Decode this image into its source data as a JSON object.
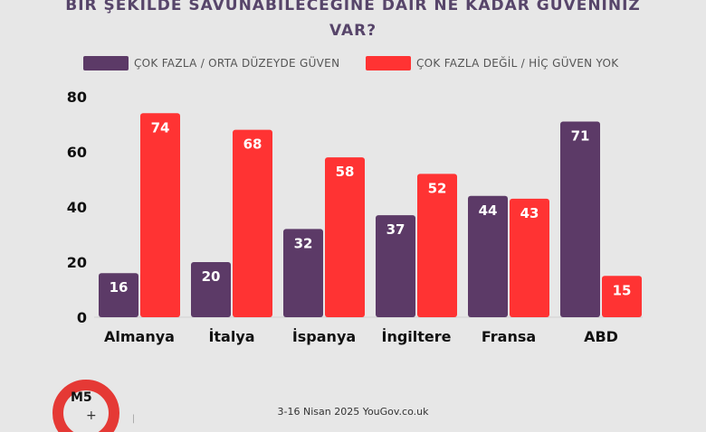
{
  "chart_data": {
    "type": "bar",
    "title": "BİR ŞEKİLDE SAVUNABİLECEĞİNE DAİR NE KADAR GÜVENİNİZ VAR?",
    "title_lines": [
      "BİR ŞEKİLDE SAVUNABİLECEĞİNE DAİR NE KADAR GÜVENİNİZ",
      "VAR?"
    ],
    "categories": [
      "Almanya",
      "İtalya",
      "İspanya",
      "İngiltere",
      "Fransa",
      "ABD"
    ],
    "series": [
      {
        "name": "ÇOK FAZLA / ORTA DÜZEYDE GÜVEN",
        "color": "#5c3a67",
        "values": [
          16,
          20,
          32,
          37,
          44,
          71
        ]
      },
      {
        "name": "ÇOK FAZLA DEĞİL / HİÇ GÜVEN YOK",
        "color": "#ff3333",
        "values": [
          74,
          68,
          58,
          52,
          43,
          15
        ]
      }
    ],
    "ylim": [
      0,
      80
    ],
    "yticks": [
      0,
      20,
      40,
      60,
      80
    ],
    "grid": false,
    "legend_position": "top",
    "data_labels": true
  },
  "footer": {
    "source": "3-16 Nisan 2025 YouGov.co.uk"
  },
  "logo": {
    "text": "M5"
  }
}
